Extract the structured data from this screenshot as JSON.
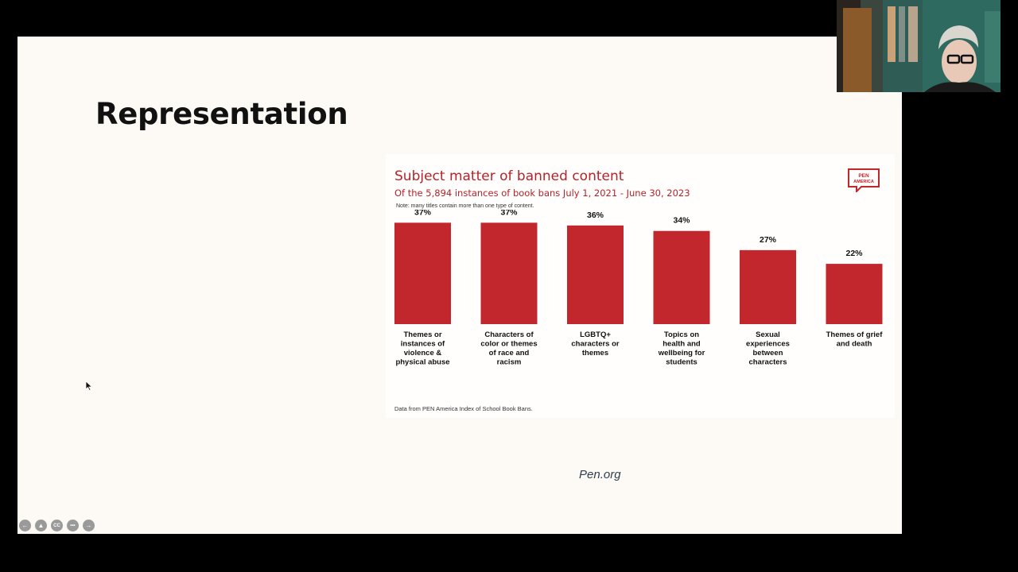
{
  "slide": {
    "title": "Representation",
    "source_link": "Pen.org"
  },
  "chart": {
    "logo_text": [
      "PEN",
      "AMERICA"
    ],
    "note": "Note: many titles contain more than one type of content.",
    "source": "Data from PEN America Index of School Book Bans.",
    "colors": {
      "bar": "#c1272d",
      "title": "#b4232a"
    }
  },
  "chart_data": {
    "type": "bar",
    "title": "Subject matter of banned content",
    "subtitle": "Of the 5,894 instances of book bans July 1, 2021 - June 30, 2023",
    "categories": [
      "Themes or instances of violence & physical abuse",
      "Characters of color or themes of race and racism",
      "LGBTQ+ characters or themes",
      "Topics on health and wellbeing for students",
      "Sexual experiences between characters",
      "Themes of grief and death"
    ],
    "category_lines": [
      [
        "Themes or",
        "instances of",
        "violence &",
        "physical abuse"
      ],
      [
        "Characters of",
        "color or themes",
        "of race and",
        "racism"
      ],
      [
        "LGBTQ+",
        "characters or",
        "themes"
      ],
      [
        "Topics on",
        "health and",
        "wellbeing for",
        "students"
      ],
      [
        "Sexual",
        "experiences",
        "between",
        "characters"
      ],
      [
        "Themes of grief",
        "and death"
      ]
    ],
    "values": [
      37,
      37,
      36,
      34,
      27,
      22
    ],
    "value_labels": [
      "37%",
      "37%",
      "36%",
      "34%",
      "27%",
      "22%"
    ],
    "xlabel": "",
    "ylabel": "",
    "ylim": [
      0,
      40
    ],
    "grid": false,
    "legend": "none"
  },
  "player_controls": [
    {
      "name": "previous-slide-icon",
      "glyph": "←"
    },
    {
      "name": "presenter-icon",
      "glyph": "▲"
    },
    {
      "name": "captions-icon",
      "glyph": "CC"
    },
    {
      "name": "more-options-icon",
      "glyph": "•••"
    },
    {
      "name": "next-slide-icon",
      "glyph": "→"
    }
  ]
}
